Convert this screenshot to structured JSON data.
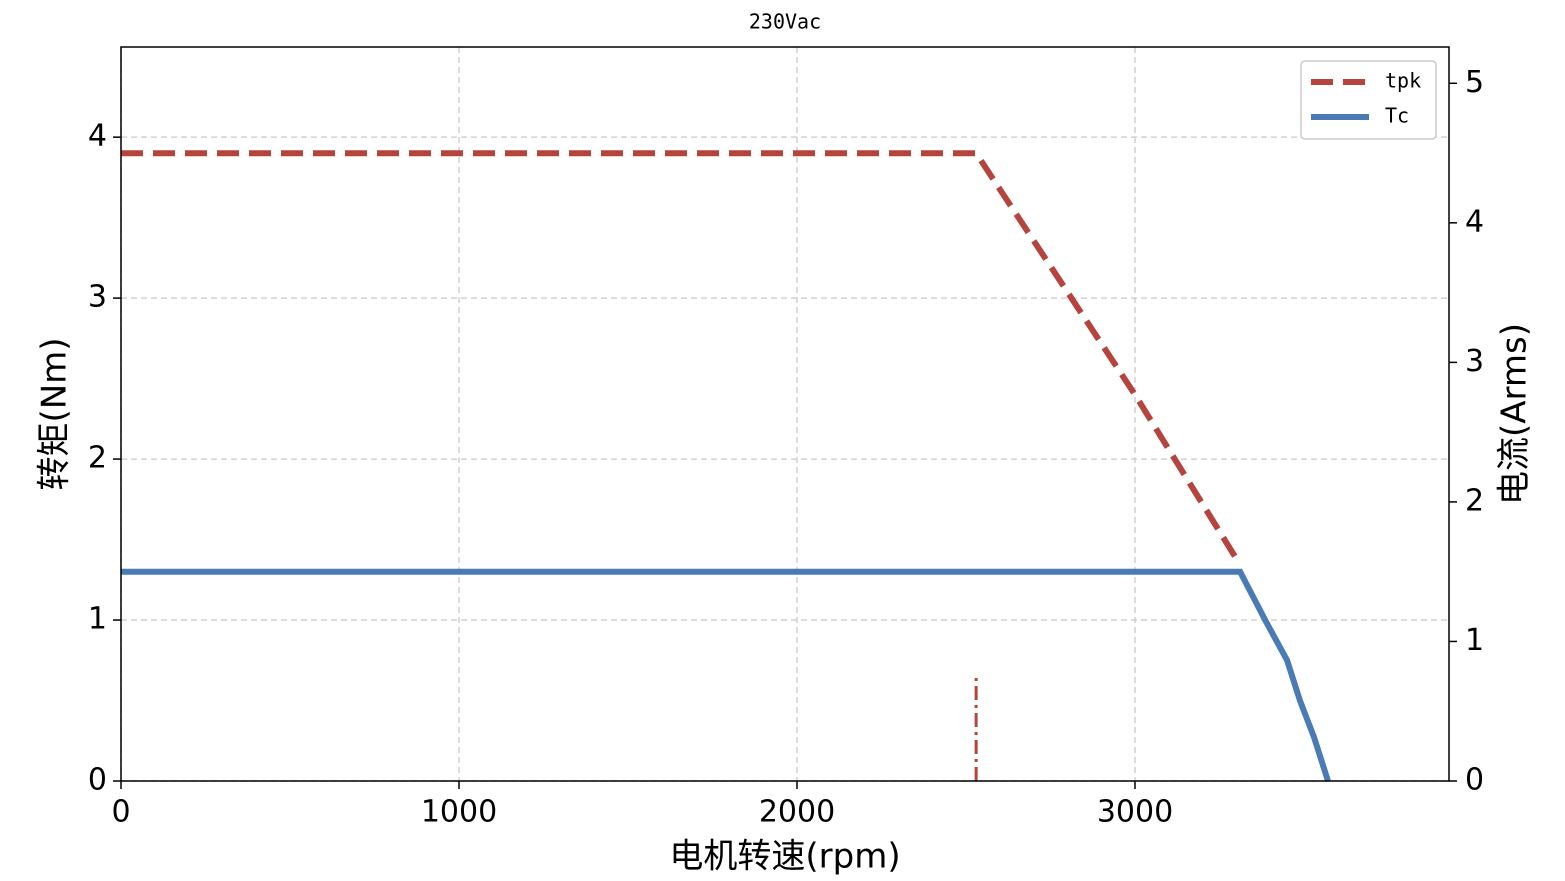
{
  "chart_data": {
    "type": "line",
    "title": "230Vac",
    "x_label": "电机转速(rpm)",
    "y_label": "转矩(Nm)",
    "y2_label": "电流(Arms)",
    "xlim": [
      0,
      3929
    ],
    "xticks": [
      0,
      1000,
      2000,
      3000
    ],
    "ylim": [
      0,
      4.56
    ],
    "yticks": [
      0,
      1,
      2,
      3,
      4
    ],
    "y2lim": [
      0,
      5.26
    ],
    "y2ticks": [
      0,
      1,
      2,
      3,
      4,
      5
    ],
    "grid": true,
    "legend": "upper right",
    "series": [
      {
        "name": "tpk",
        "color": "#b5443f",
        "dash": "dashed",
        "x": [
          0,
          2530,
          3000,
          3300
        ],
        "values": [
          3.9,
          3.9,
          2.4,
          1.38
        ]
      },
      {
        "name": "Tc",
        "color": "#4a7bb7",
        "dash": "solid",
        "x": [
          0,
          3311,
          3385,
          3450,
          3488,
          3530,
          3571
        ],
        "values": [
          1.3,
          1.3,
          1.0,
          0.75,
          0.5,
          0.27,
          0
        ]
      }
    ],
    "vline": {
      "x": 2530,
      "values": [
        0,
        0.65
      ],
      "color": "#b5443f"
    }
  }
}
